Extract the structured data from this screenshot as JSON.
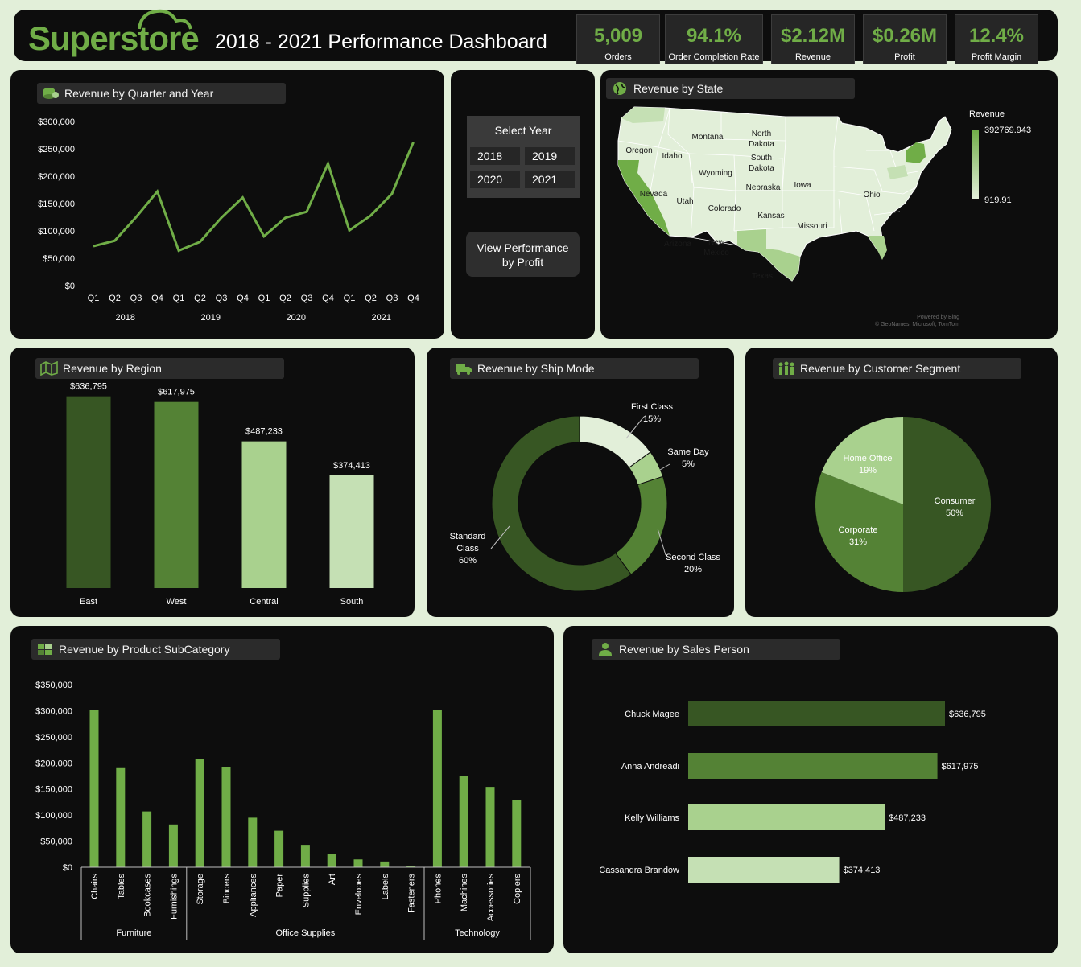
{
  "header": {
    "logo": "Superstore",
    "title": "2018 - 2021 Performance Dashboard",
    "kpis": [
      {
        "value": "5,009",
        "label": "Orders"
      },
      {
        "value": "94.1%",
        "label": "Order Completion Rate"
      },
      {
        "value": "$2.12M",
        "label": "Revenue"
      },
      {
        "value": "$0.26M",
        "label": "Profit"
      },
      {
        "value": "12.4%",
        "label": "Profit Margin"
      }
    ]
  },
  "colors": {
    "accent": "#70ad47",
    "dark_green": "#375623",
    "mid_green": "#548235",
    "light_green": "#a9d18e",
    "pale_green": "#c5e0b4",
    "background": "#e2efd9",
    "panel": "#0d0d0d"
  },
  "panels": {
    "quarter_title": "Revenue by Quarter and Year",
    "state_title": "Revenue by State",
    "region_title": "Revenue by Region",
    "ship_title": "Revenue by Ship Mode",
    "segment_title": "Revenue by  Customer Segment",
    "subcat_title": "Revenue by Product SubCategory",
    "sales_title": "Revenue by Sales Person"
  },
  "slicer": {
    "title": "Select Year",
    "years": [
      "2018",
      "2019",
      "2020",
      "2021"
    ],
    "view_button_line1": "View Performance",
    "view_button_line2": "by Profit"
  },
  "map": {
    "legend_title": "Revenue",
    "legend_max": "392769.943",
    "legend_min": "919.91",
    "attribution_1": "Powered by Bing",
    "attribution_2": "© GeoNames, Microsoft, TomTom",
    "state_labels": [
      "Montana",
      "North Dakota",
      "South Dakota",
      "Oregon",
      "Idaho",
      "Wyoming",
      "Nebraska",
      "Iowa",
      "Ohio",
      "Nevada",
      "Utah",
      "Colorado",
      "Kansas",
      "Missouri",
      "Arizona",
      "New Mexico",
      "Texas"
    ],
    "highlighted_states": [
      "California",
      "New York",
      "Washington",
      "Texas"
    ]
  },
  "chart_data": [
    {
      "id": "quarter",
      "type": "line",
      "categories": [
        "Q1",
        "Q2",
        "Q3",
        "Q4",
        "Q1",
        "Q2",
        "Q3",
        "Q4",
        "Q1",
        "Q2",
        "Q3",
        "Q4",
        "Q1",
        "Q2",
        "Q3",
        "Q4"
      ],
      "groups": [
        "2018",
        "2019",
        "2020",
        "2021"
      ],
      "values": [
        72000,
        82000,
        125000,
        172000,
        64000,
        80000,
        124000,
        161000,
        90000,
        124000,
        135000,
        223000,
        101000,
        128000,
        168000,
        262000
      ],
      "ylim": [
        0,
        300000
      ],
      "yticks": [
        "$0",
        "$50,000",
        "$100,000",
        "$150,000",
        "$200,000",
        "$250,000",
        "$300,000"
      ]
    },
    {
      "id": "region",
      "type": "bar",
      "categories": [
        "East",
        "West",
        "Central",
        "South"
      ],
      "values": [
        636795,
        617975,
        487233,
        374413
      ],
      "labels": [
        "$636,795",
        "$617,975",
        "$487,233",
        "$374,413"
      ],
      "colors": [
        "#375623",
        "#548235",
        "#a9d18e",
        "#c5e0b4"
      ],
      "ylim": [
        0,
        700000
      ]
    },
    {
      "id": "shipmode",
      "type": "pie",
      "categories": [
        "First Class",
        "Same Day",
        "Second Class",
        "Standard Class"
      ],
      "values": [
        15,
        5,
        20,
        60
      ],
      "labels": [
        "15%",
        "5%",
        "20%",
        "60%"
      ],
      "colors": [
        "#e2efd9",
        "#a9d18e",
        "#548235",
        "#375623"
      ]
    },
    {
      "id": "segment",
      "type": "pie",
      "categories": [
        "Consumer",
        "Corporate",
        "Home Office"
      ],
      "values": [
        50,
        31,
        19
      ],
      "labels": [
        "50%",
        "31%",
        "19%"
      ],
      "colors": [
        "#375623",
        "#548235",
        "#a9d18e"
      ]
    },
    {
      "id": "subcategory",
      "type": "bar",
      "categories": [
        "Chairs",
        "Tables",
        "Bookcases",
        "Furnishings",
        "Storage",
        "Binders",
        "Appliances",
        "Paper",
        "Supplies",
        "Art",
        "Envelopes",
        "Labels",
        "Fasteners",
        "Phones",
        "Machines",
        "Accessories",
        "Copiers"
      ],
      "groups": [
        {
          "name": "Furniture",
          "count": 4
        },
        {
          "name": "Office Supplies",
          "count": 9
        },
        {
          "name": "Technology",
          "count": 4
        }
      ],
      "values": [
        302000,
        190000,
        107000,
        82000,
        208000,
        192000,
        95000,
        70000,
        43000,
        26000,
        15000,
        11000,
        2000,
        302000,
        175000,
        154000,
        129000
      ],
      "ylim": [
        0,
        350000
      ],
      "yticks": [
        "$0",
        "$50,000",
        "$100,000",
        "$150,000",
        "$200,000",
        "$250,000",
        "$300,000",
        "$350,000"
      ]
    },
    {
      "id": "salesperson",
      "type": "bar",
      "orientation": "horizontal",
      "categories": [
        "Chuck Magee",
        "Anna Andreadi",
        "Kelly Williams",
        "Cassandra Brandow"
      ],
      "values": [
        636795,
        617975,
        487233,
        374413
      ],
      "labels": [
        "$636,795",
        "$617,975",
        "$487,233",
        "$374,413"
      ],
      "colors": [
        "#375623",
        "#548235",
        "#a9d18e",
        "#c5e0b4"
      ]
    }
  ]
}
